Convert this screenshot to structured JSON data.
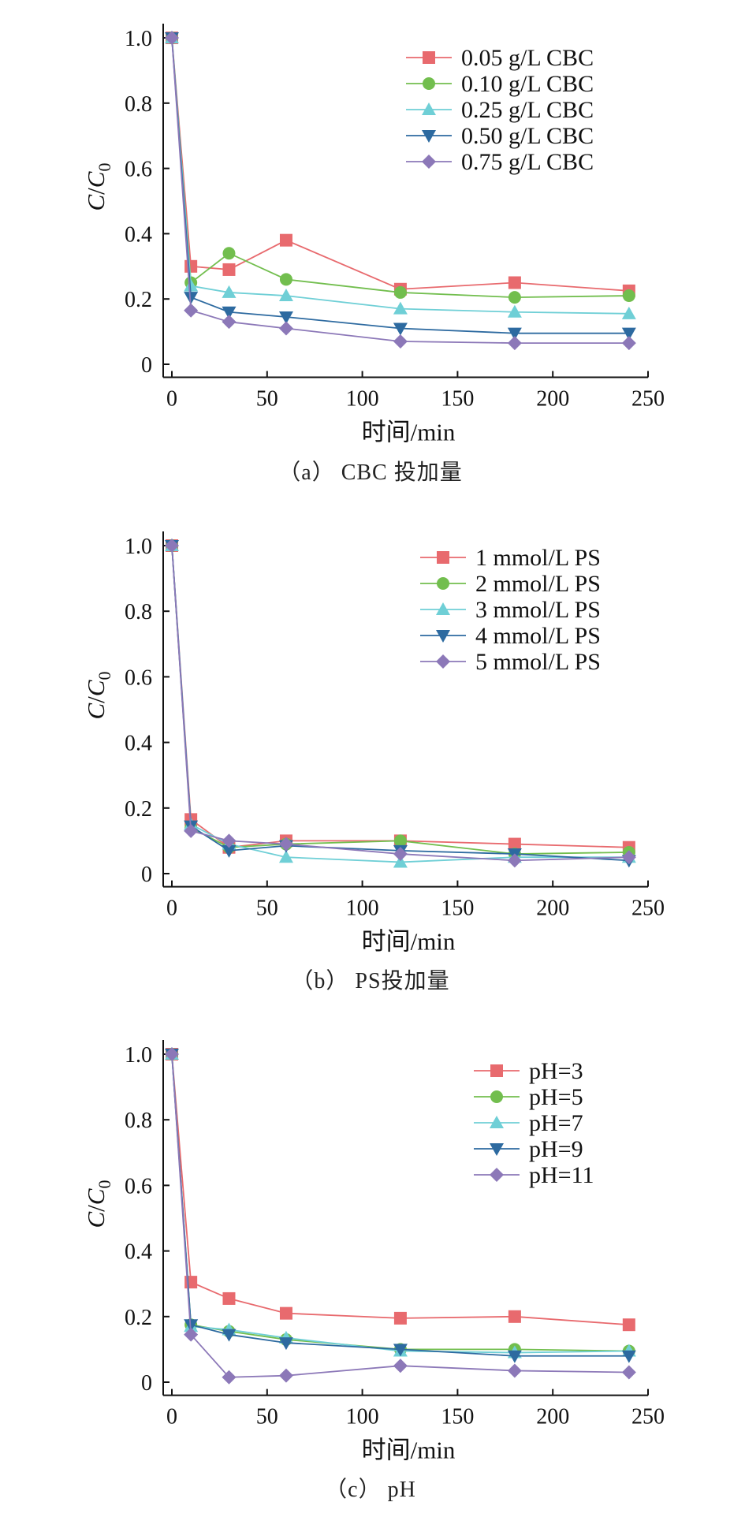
{
  "chart_data": [
    {
      "type": "line",
      "caption": "（a） CBC 投加量",
      "xlabel": "时间/min",
      "ylabel": {
        "main": "C",
        "slash": "/",
        "main2": "C",
        "sub": "0"
      },
      "xlim": [
        -5,
        250
      ],
      "ylim": [
        -0.04,
        1.0
      ],
      "xticks": [
        "0",
        "50",
        "100",
        "150",
        "200",
        "250"
      ],
      "yticks": [
        "0",
        "0.2",
        "0.4",
        "0.6",
        "0.8",
        "1.0"
      ],
      "legend_position": "top-right",
      "x": [
        0,
        10,
        30,
        60,
        120,
        180,
        240
      ],
      "series": [
        {
          "name": "0.05 g/L CBC",
          "color": "#e86a6e",
          "marker": "square",
          "values": [
            1.0,
            0.3,
            0.29,
            0.38,
            0.23,
            0.25,
            0.225
          ]
        },
        {
          "name": "0.10 g/L CBC",
          "color": "#72be4e",
          "marker": "circle",
          "values": [
            1.0,
            0.25,
            0.34,
            0.26,
            0.22,
            0.205,
            0.21
          ]
        },
        {
          "name": "0.25 g/L CBC",
          "color": "#6fcfd6",
          "marker": "triangle-up",
          "values": [
            1.0,
            0.24,
            0.22,
            0.21,
            0.17,
            0.16,
            0.155
          ]
        },
        {
          "name": "0.50 g/L CBC",
          "color": "#2d6aa0",
          "marker": "triangle-down",
          "values": [
            1.0,
            0.205,
            0.16,
            0.145,
            0.11,
            0.095,
            0.095
          ]
        },
        {
          "name": "0.75 g/L CBC",
          "color": "#8c78b8",
          "marker": "diamond",
          "values": [
            1.0,
            0.165,
            0.13,
            0.11,
            0.07,
            0.065,
            0.065
          ]
        }
      ]
    },
    {
      "type": "line",
      "caption": "（b） PS投加量",
      "xlabel": "时间/min",
      "ylabel": {
        "main": "C",
        "slash": "/",
        "main2": "C",
        "sub": "0"
      },
      "xlim": [
        -5,
        250
      ],
      "ylim": [
        -0.04,
        1.0
      ],
      "xticks": [
        "0",
        "50",
        "100",
        "150",
        "200",
        "250"
      ],
      "yticks": [
        "0",
        "0.2",
        "0.4",
        "0.6",
        "0.8",
        "1.0"
      ],
      "legend_position": "top-right",
      "x": [
        0,
        10,
        30,
        60,
        120,
        180,
        240
      ],
      "series": [
        {
          "name": "1 mmol/L PS",
          "color": "#e86a6e",
          "marker": "square",
          "values": [
            1.0,
            0.165,
            0.08,
            0.1,
            0.1,
            0.09,
            0.08
          ]
        },
        {
          "name": "2 mmol/L PS",
          "color": "#72be4e",
          "marker": "circle",
          "values": [
            1.0,
            0.14,
            0.08,
            0.09,
            0.1,
            0.06,
            0.065
          ]
        },
        {
          "name": "3 mmol/L PS",
          "color": "#6fcfd6",
          "marker": "triangle-up",
          "values": [
            1.0,
            0.15,
            0.09,
            0.05,
            0.035,
            0.05,
            0.05
          ]
        },
        {
          "name": "4 mmol/L PS",
          "color": "#2d6aa0",
          "marker": "triangle-down",
          "values": [
            1.0,
            0.145,
            0.07,
            0.085,
            0.07,
            0.06,
            0.04
          ]
        },
        {
          "name": "5 mmol/L PS",
          "color": "#8c78b8",
          "marker": "diamond",
          "values": [
            1.0,
            0.13,
            0.1,
            0.09,
            0.06,
            0.04,
            0.05
          ]
        }
      ]
    },
    {
      "type": "line",
      "caption": "（c） pH",
      "xlabel": "时间/min",
      "ylabel": {
        "main": "C",
        "slash": "/",
        "main2": "C",
        "sub": "0"
      },
      "xlim": [
        -5,
        250
      ],
      "ylim": [
        -0.04,
        1.0
      ],
      "xticks": [
        "0",
        "50",
        "100",
        "150",
        "200",
        "250"
      ],
      "yticks": [
        "0",
        "0.2",
        "0.4",
        "0.6",
        "0.8",
        "1.0"
      ],
      "legend_position": "top-right",
      "x": [
        0,
        10,
        30,
        60,
        120,
        180,
        240
      ],
      "series": [
        {
          "name": "pH=3",
          "color": "#e86a6e",
          "marker": "square",
          "values": [
            1.0,
            0.305,
            0.255,
            0.21,
            0.195,
            0.2,
            0.175
          ]
        },
        {
          "name": "pH=5",
          "color": "#72be4e",
          "marker": "circle",
          "values": [
            1.0,
            0.175,
            0.155,
            0.13,
            0.1,
            0.1,
            0.095
          ]
        },
        {
          "name": "pH=7",
          "color": "#6fcfd6",
          "marker": "triangle-up",
          "values": [
            1.0,
            0.17,
            0.16,
            0.135,
            0.095,
            0.09,
            0.095
          ]
        },
        {
          "name": "pH=9",
          "color": "#2d6aa0",
          "marker": "triangle-down",
          "values": [
            1.0,
            0.175,
            0.145,
            0.12,
            0.1,
            0.08,
            0.08
          ]
        },
        {
          "name": "pH=11",
          "color": "#8c78b8",
          "marker": "diamond",
          "values": [
            1.0,
            0.145,
            0.015,
            0.02,
            0.05,
            0.035,
            0.03
          ]
        }
      ]
    }
  ]
}
